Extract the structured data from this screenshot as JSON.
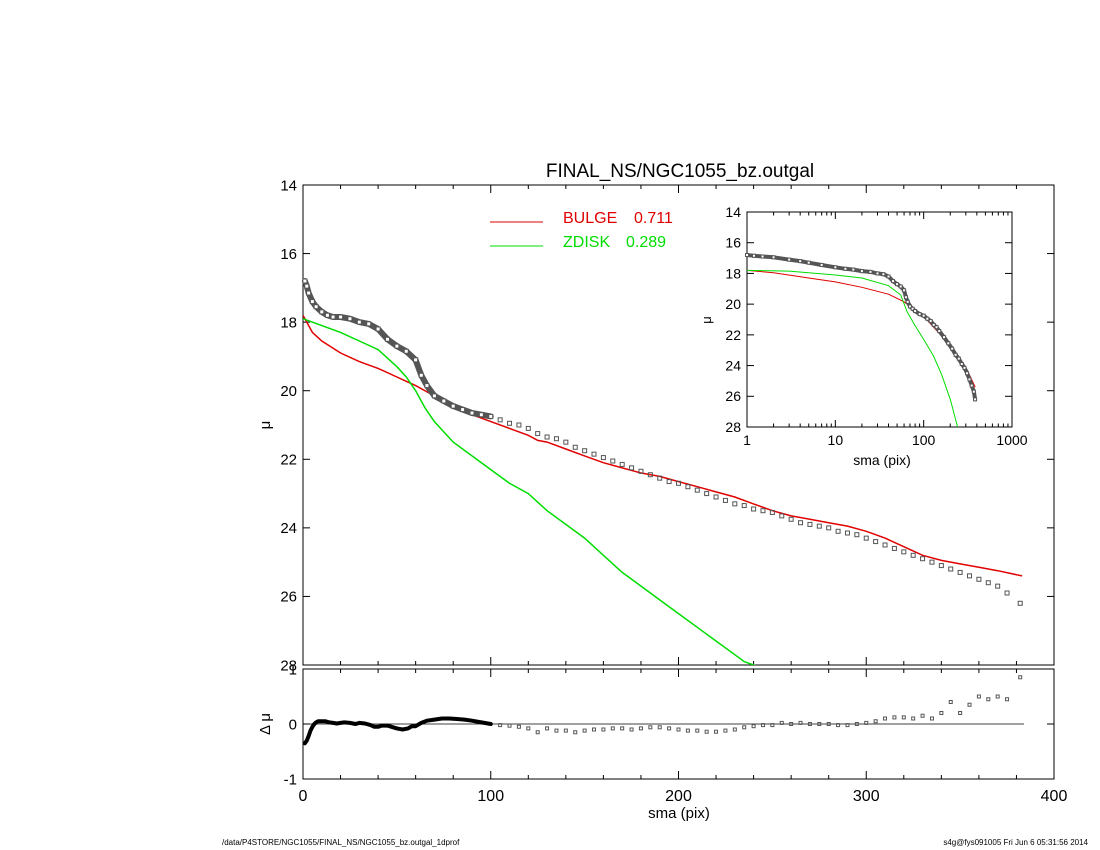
{
  "footer": {
    "path": "/data/P4STORE/NGC1055/FINAL_NS/NGC1055_bz.outgal_1dprof",
    "stamp": "s4g@fys091005  Fri Jun  6 05:31:56 2014"
  },
  "colors": {
    "bulge": "#e00000",
    "zdisk": "#00dd00",
    "data": "#555555",
    "axes": "#000000"
  },
  "chart_data": [
    {
      "id": "main",
      "type": "line",
      "title": "FINAL_NS/NGC1055_bz.outgal",
      "xlabel": "",
      "ylabel": "μ",
      "xlim": [
        0,
        400
      ],
      "ylim": [
        28,
        14
      ],
      "xticks": [],
      "yticks": [
        14,
        16,
        18,
        20,
        22,
        24,
        26,
        28
      ],
      "legend_placement": "top-center",
      "legend": [
        {
          "label": "BULGE",
          "value": "0.711",
          "color": "#e00000"
        },
        {
          "label": "ZDISK",
          "value": "0.289",
          "color": "#00dd00"
        }
      ],
      "series": [
        {
          "name": "BULGE",
          "color": "#e00000",
          "x": [
            0,
            5,
            10,
            20,
            30,
            40,
            50,
            60,
            70,
            80,
            90,
            100,
            110,
            120,
            125,
            130,
            140,
            150,
            160,
            170,
            180,
            190,
            200,
            210,
            220,
            230,
            240,
            250,
            260,
            270,
            280,
            290,
            300,
            310,
            320,
            330,
            340,
            350,
            360,
            370,
            383
          ],
          "y": [
            17.8,
            18.3,
            18.55,
            18.9,
            19.15,
            19.35,
            19.6,
            19.85,
            20.15,
            20.45,
            20.7,
            20.9,
            21.1,
            21.3,
            21.45,
            21.5,
            21.7,
            21.9,
            22.1,
            22.25,
            22.4,
            22.5,
            22.65,
            22.8,
            22.95,
            23.1,
            23.3,
            23.5,
            23.65,
            23.75,
            23.85,
            23.95,
            24.1,
            24.3,
            24.55,
            24.8,
            24.95,
            25.05,
            25.15,
            25.25,
            25.4
          ]
        },
        {
          "name": "ZDISK",
          "color": "#00dd00",
          "x": [
            0,
            10,
            20,
            30,
            40,
            50,
            55,
            60,
            65,
            70,
            80,
            90,
            100,
            110,
            120,
            130,
            140,
            150,
            160,
            170,
            180,
            190,
            200,
            210,
            220,
            230,
            235,
            240,
            245
          ],
          "y": [
            17.9,
            18.1,
            18.3,
            18.55,
            18.8,
            19.3,
            19.6,
            20.0,
            20.5,
            20.9,
            21.5,
            21.9,
            22.3,
            22.7,
            23.0,
            23.5,
            23.9,
            24.3,
            24.8,
            25.3,
            25.7,
            26.1,
            26.5,
            26.9,
            27.3,
            27.7,
            27.9,
            28.0,
            28.1
          ]
        },
        {
          "name": "",
          "kind": "points-dense",
          "color": "#555555",
          "x": [
            1,
            2,
            3,
            5,
            7,
            10,
            13,
            16,
            20,
            25,
            30,
            35,
            40,
            45,
            50,
            55,
            60,
            63,
            66,
            70,
            75,
            80,
            85,
            90,
            95,
            100
          ],
          "y": [
            16.8,
            16.95,
            17.15,
            17.4,
            17.55,
            17.7,
            17.8,
            17.85,
            17.85,
            17.9,
            18.0,
            18.05,
            18.2,
            18.5,
            18.7,
            18.85,
            19.1,
            19.55,
            19.85,
            20.15,
            20.3,
            20.45,
            20.55,
            20.65,
            20.7,
            20.75
          ]
        },
        {
          "name": "",
          "kind": "points-sparse",
          "color": "#555555",
          "x": [
            105,
            110,
            115,
            120,
            125,
            130,
            135,
            140,
            145,
            150,
            155,
            160,
            165,
            170,
            175,
            180,
            185,
            190,
            195,
            200,
            205,
            210,
            215,
            220,
            225,
            230,
            235,
            240,
            245,
            250,
            255,
            260,
            265,
            270,
            275,
            280,
            285,
            290,
            295,
            300,
            305,
            310,
            315,
            320,
            325,
            330,
            335,
            340,
            345,
            350,
            355,
            360,
            365,
            370,
            375,
            382
          ],
          "y": [
            20.85,
            20.95,
            21.0,
            21.1,
            21.25,
            21.35,
            21.4,
            21.5,
            21.65,
            21.75,
            21.85,
            21.95,
            22.05,
            22.15,
            22.25,
            22.35,
            22.45,
            22.55,
            22.65,
            22.7,
            22.8,
            22.9,
            23.0,
            23.1,
            23.2,
            23.3,
            23.35,
            23.45,
            23.5,
            23.55,
            23.65,
            23.75,
            23.85,
            23.9,
            23.95,
            24.0,
            24.1,
            24.15,
            24.2,
            24.3,
            24.4,
            24.5,
            24.6,
            24.7,
            24.8,
            24.9,
            25.0,
            25.1,
            25.2,
            25.3,
            25.4,
            25.5,
            25.6,
            25.7,
            25.9,
            26.2
          ]
        }
      ]
    },
    {
      "id": "inset",
      "type": "line",
      "title": "",
      "xlabel": "sma (pix)",
      "ylabel": "μ",
      "xscale": "log",
      "xlim": [
        1,
        1000
      ],
      "ylim": [
        28,
        14
      ],
      "xticks": [
        1,
        10,
        100,
        1000
      ],
      "xticklabels": [
        "1",
        "10",
        "100",
        "1000"
      ],
      "yticks": [
        14,
        16,
        18,
        20,
        22,
        24,
        26,
        28
      ],
      "legend_placement": "none",
      "series": [
        {
          "name": "BULGE",
          "color": "#e00000",
          "x": [
            1,
            2,
            5,
            10,
            20,
            40,
            60,
            80,
            100,
            150,
            200,
            300,
            383
          ],
          "y": [
            17.8,
            17.95,
            18.3,
            18.55,
            18.9,
            19.35,
            19.85,
            20.4,
            20.8,
            21.9,
            22.6,
            24.1,
            25.4
          ]
        },
        {
          "name": "ZDISK",
          "color": "#00dd00",
          "x": [
            1,
            3,
            10,
            20,
            40,
            55,
            65,
            80,
            100,
            130,
            160,
            200,
            245
          ],
          "y": [
            17.8,
            17.85,
            18.1,
            18.3,
            18.8,
            19.4,
            20.5,
            21.4,
            22.3,
            23.4,
            24.6,
            26.2,
            28.1
          ]
        },
        {
          "name": "",
          "kind": "points",
          "color": "#555555",
          "x": [
            1,
            1.2,
            1.5,
            2,
            3,
            4,
            5,
            7,
            10,
            13,
            16,
            20,
            25,
            30,
            35,
            40,
            45,
            50,
            55,
            60,
            63,
            66,
            70,
            75,
            80,
            90,
            100,
            110,
            120,
            130,
            140,
            150,
            170,
            190,
            210,
            230,
            250,
            270,
            290,
            310,
            330,
            350,
            370,
            382
          ],
          "y": [
            16.8,
            16.85,
            16.9,
            16.95,
            17.1,
            17.2,
            17.3,
            17.45,
            17.6,
            17.7,
            17.75,
            17.85,
            17.9,
            18.0,
            18.05,
            18.2,
            18.5,
            18.7,
            18.85,
            19.1,
            19.55,
            19.85,
            20.15,
            20.3,
            20.45,
            20.65,
            20.75,
            20.95,
            21.1,
            21.35,
            21.5,
            21.75,
            22.15,
            22.55,
            22.9,
            23.3,
            23.55,
            23.9,
            24.15,
            24.5,
            24.9,
            25.3,
            25.7,
            26.2
          ]
        }
      ]
    },
    {
      "id": "residual",
      "type": "scatter",
      "title": "",
      "xlabel": "sma (pix)",
      "ylabel": "Δ μ",
      "xlim": [
        0,
        400
      ],
      "ylim": [
        -1,
        1
      ],
      "xticks": [
        0,
        100,
        200,
        300,
        400
      ],
      "yticks": [
        -1,
        0,
        1
      ],
      "legend_placement": "none",
      "series": [
        {
          "name": "",
          "kind": "dense",
          "color": "#000000",
          "x": [
            1,
            2,
            3,
            4,
            5,
            6,
            7,
            8,
            10,
            12,
            14,
            16,
            18,
            20,
            22,
            25,
            28,
            30,
            33,
            36,
            38,
            40,
            42,
            45,
            48,
            50,
            53,
            56,
            58,
            60,
            63,
            66,
            70,
            74,
            78,
            82,
            86,
            90,
            95,
            100
          ],
          "y": [
            -0.35,
            -0.3,
            -0.22,
            -0.12,
            -0.05,
            0.0,
            0.03,
            0.05,
            0.05,
            0.05,
            0.03,
            0.02,
            0.01,
            0.02,
            0.03,
            0.02,
            0.0,
            0.02,
            0.01,
            -0.02,
            -0.05,
            -0.05,
            -0.03,
            -0.03,
            -0.06,
            -0.08,
            -0.1,
            -0.08,
            -0.04,
            -0.04,
            0.02,
            0.06,
            0.08,
            0.1,
            0.1,
            0.09,
            0.08,
            0.06,
            0.03,
            0.0
          ]
        },
        {
          "name": "",
          "kind": "sparse",
          "color": "#555555",
          "x": [
            105,
            110,
            115,
            120,
            125,
            130,
            135,
            140,
            145,
            150,
            155,
            160,
            165,
            170,
            175,
            180,
            185,
            190,
            195,
            200,
            205,
            210,
            215,
            220,
            225,
            230,
            235,
            240,
            245,
            250,
            255,
            260,
            265,
            270,
            275,
            280,
            285,
            290,
            295,
            300,
            305,
            310,
            315,
            320,
            325,
            330,
            335,
            340,
            345,
            350,
            355,
            360,
            365,
            370,
            375,
            382
          ],
          "y": [
            -0.02,
            -0.03,
            -0.05,
            -0.08,
            -0.15,
            -0.08,
            -0.12,
            -0.12,
            -0.15,
            -0.12,
            -0.1,
            -0.1,
            -0.08,
            -0.08,
            -0.1,
            -0.08,
            -0.06,
            -0.06,
            -0.08,
            -0.1,
            -0.12,
            -0.12,
            -0.14,
            -0.14,
            -0.12,
            -0.1,
            -0.06,
            -0.04,
            -0.02,
            -0.02,
            0.02,
            0.0,
            0.02,
            0.0,
            0.0,
            0.0,
            -0.02,
            -0.02,
            0.0,
            0.02,
            0.05,
            0.1,
            0.12,
            0.12,
            0.1,
            0.15,
            0.1,
            0.2,
            0.4,
            0.2,
            0.35,
            0.5,
            0.45,
            0.5,
            0.45,
            0.85
          ]
        }
      ]
    }
  ]
}
